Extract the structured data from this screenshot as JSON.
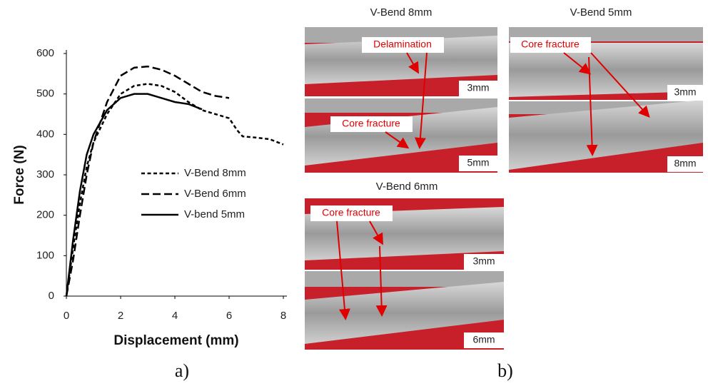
{
  "chart_data": {
    "type": "line",
    "x_label": "Displacement (mm)",
    "y_label": "Force (N)",
    "xlim": [
      0,
      8
    ],
    "xticks": [
      0,
      2,
      4,
      6,
      8
    ],
    "ylim": [
      0,
      600
    ],
    "yticks": [
      0,
      100,
      200,
      300,
      400,
      500,
      600
    ],
    "grid": false,
    "legend": "center-right",
    "series": [
      {
        "name": "V-Bend 8mm",
        "color": "#000000",
        "line_style": "dotted",
        "x": [
          0,
          0.25,
          0.5,
          0.75,
          1,
          1.5,
          2,
          2.5,
          3,
          3.5,
          4,
          4.5,
          5,
          5.5,
          6,
          6.3,
          6.5,
          7,
          7.5,
          8
        ],
        "values": [
          0,
          120,
          230,
          320,
          380,
          450,
          500,
          520,
          525,
          520,
          505,
          480,
          460,
          450,
          440,
          410,
          395,
          392,
          388,
          375
        ]
      },
      {
        "name": "V-Bend 6mm",
        "color": "#000000",
        "line_style": "dashed",
        "x": [
          0,
          0.25,
          0.5,
          0.75,
          1,
          1.5,
          2,
          2.5,
          3,
          3.5,
          4,
          4.5,
          5,
          5.5,
          6
        ],
        "values": [
          0,
          90,
          200,
          300,
          380,
          480,
          545,
          565,
          568,
          560,
          545,
          525,
          505,
          495,
          490
        ]
      },
      {
        "name": "V-bend 5mm",
        "color": "#000000",
        "line_style": "solid",
        "x": [
          0,
          0.25,
          0.5,
          0.75,
          1,
          1.5,
          2,
          2.5,
          3,
          3.5,
          4,
          4.5,
          5
        ],
        "values": [
          0,
          140,
          260,
          350,
          400,
          460,
          490,
          500,
          500,
          490,
          480,
          475,
          462
        ]
      }
    ]
  },
  "captions": [
    "a)",
    "b)"
  ],
  "panels": [
    {
      "title": "V-Bend 8mm",
      "photos": [
        "3mm",
        "5mm"
      ],
      "annotations": [
        "Delamination",
        "Core fracture"
      ]
    },
    {
      "title": "V-Bend 5mm",
      "photos": [
        "3mm",
        "8mm"
      ],
      "annotations": [
        "Core fracture"
      ]
    },
    {
      "title": "V-Bend 6mm",
      "photos": [
        "3mm",
        "6mm"
      ],
      "annotations": [
        "Core fracture"
      ]
    }
  ]
}
